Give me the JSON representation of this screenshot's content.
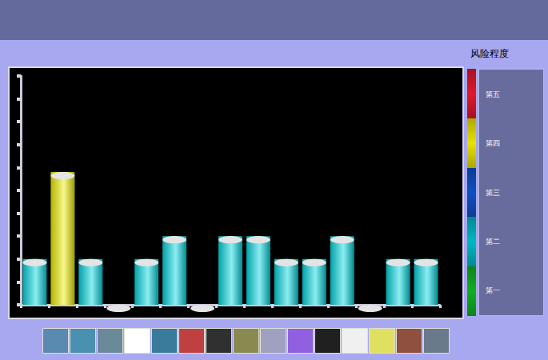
{
  "chart_data": {
    "type": "bar",
    "categories": [
      null,
      null,
      null,
      null,
      null,
      null,
      null,
      null,
      null,
      null,
      null,
      null,
      null,
      null,
      null
    ],
    "values": [
      2,
      5.8,
      2,
      0,
      2,
      3,
      0,
      3,
      3,
      2,
      2,
      3,
      0,
      2,
      2
    ],
    "colors": [
      "#00d8e0",
      "#f0f000",
      "#00d8e0",
      "#00d8e0",
      "#00d8e0",
      "#00d8e0",
      "#00d8e0",
      "#00d8e0",
      "#00d8e0",
      "#00d8e0",
      "#00d8e0",
      "#00d8e0",
      "#00d8e0",
      "#00d8e0",
      "#00d8e0"
    ],
    "ylim": [
      0,
      10
    ],
    "yticks": [
      0,
      1,
      2,
      3,
      4,
      5,
      6,
      7,
      8,
      9,
      10
    ],
    "grid": false,
    "tick_labels": false
  },
  "risk_scale": {
    "title": "风险程度",
    "levels": [
      {
        "label": "第五",
        "color": "#e01828"
      },
      {
        "label": "第四",
        "color": "#e8e000"
      },
      {
        "label": "第三",
        "color": "#1050c0"
      },
      {
        "label": "第二",
        "color": "#00b8c0"
      },
      {
        "label": "第一",
        "color": "#10b020"
      }
    ]
  }
}
